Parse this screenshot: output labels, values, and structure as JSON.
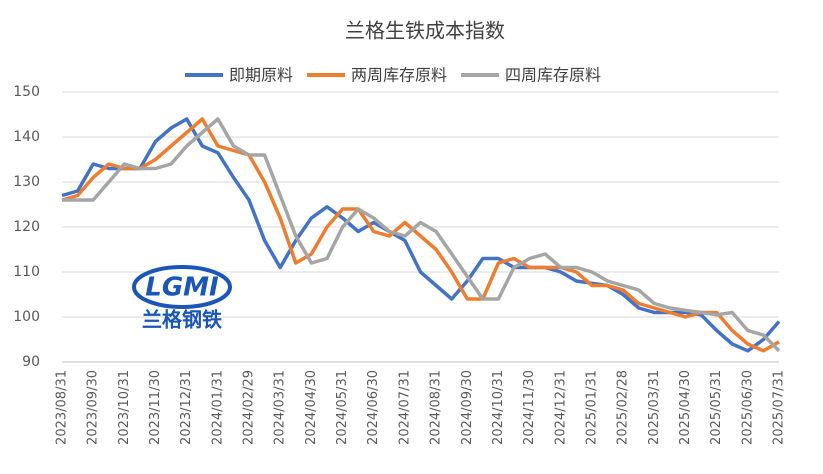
{
  "chart_data": {
    "type": "line",
    "title": "兰格生铁成本指数",
    "categories": [
      "2023/08/31",
      null,
      "2023/09/30",
      null,
      "2023/10/31",
      null,
      "2023/11/30",
      null,
      "2023/12/31",
      null,
      "2024/01/31",
      null,
      "2024/02/29",
      null,
      "2024/03/31",
      null,
      "2024/04/30",
      null,
      "2024/05/31",
      null,
      "2024/06/30",
      null,
      "2024/07/31",
      null,
      "2024/08/31",
      null,
      "2024/09/30",
      null,
      "2024/10/31",
      null,
      "2024/11/30",
      null,
      "2024/12/31",
      null,
      "2025/01/31",
      null,
      "2025/02/28",
      null,
      "2025/03/31",
      null,
      "2025/04/30",
      null,
      "2025/05/31",
      null,
      "2025/06/30",
      null,
      "2025/07/31"
    ],
    "series": [
      {
        "name": "即期原料",
        "color": "#4472c4",
        "values": [
          127,
          128,
          134,
          133,
          133,
          133,
          139,
          142,
          144,
          138,
          136.5,
          131,
          126,
          117,
          111,
          117,
          122,
          124.5,
          122,
          119,
          121,
          119,
          117,
          110,
          107,
          104,
          108,
          113,
          113,
          111,
          111,
          111,
          110,
          108,
          107.5,
          107,
          105,
          102,
          101,
          101,
          101,
          100.5,
          97,
          94,
          92.5,
          95,
          99
        ]
      },
      {
        "name": "两周库存原料",
        "color": "#ed7d31",
        "values": [
          126,
          127,
          131,
          134,
          133,
          133,
          135,
          138,
          141,
          144,
          138,
          137,
          136,
          130,
          122,
          112,
          114,
          120,
          124,
          124,
          119,
          118,
          121,
          118,
          115,
          110,
          104,
          104,
          112,
          113,
          111,
          111,
          111,
          110,
          107,
          107,
          106,
          103,
          102,
          101,
          100,
          101,
          101,
          97,
          94,
          92.5,
          94.5
        ]
      },
      {
        "name": "四周库存原料",
        "color": "#a5a5a5",
        "values": [
          126,
          126,
          126,
          130,
          134,
          133,
          133,
          134,
          138,
          141,
          144,
          138,
          136,
          136,
          127,
          118,
          112,
          113,
          120,
          124,
          122,
          119,
          118,
          121,
          119,
          114,
          109,
          104,
          104,
          111,
          113,
          114,
          111,
          111,
          110,
          108,
          107,
          106,
          103,
          102,
          101.5,
          101,
          100.5,
          101,
          97,
          96,
          92.5
        ]
      }
    ],
    "ylim": [
      90,
      150
    ],
    "yticks": [
      90,
      100,
      110,
      120,
      130,
      140,
      150
    ],
    "grid": true,
    "legend": "top",
    "watermark": {
      "abbr": "LGMI",
      "name": "兰格钢铁"
    }
  }
}
